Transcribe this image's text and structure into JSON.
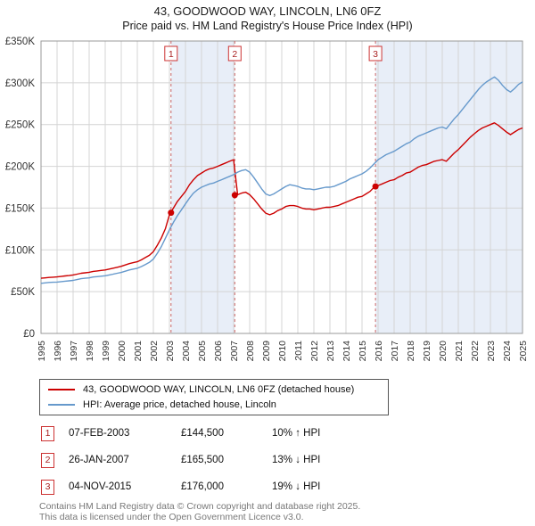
{
  "title": "43, GOODWOOD WAY, LINCOLN, LN6 0FZ",
  "subtitle": "Price paid vs. HM Land Registry's House Price Index (HPI)",
  "chart_data": {
    "type": "line",
    "x_range": [
      1995,
      2025
    ],
    "ylim": [
      0,
      350000
    ],
    "y_tick_step": 50000,
    "y_ticks": [
      "£0",
      "£50K",
      "£100K",
      "£150K",
      "£200K",
      "£250K",
      "£300K",
      "£350K"
    ],
    "x_ticks": [
      1995,
      1996,
      1997,
      1998,
      1999,
      2000,
      2001,
      2002,
      2003,
      2004,
      2005,
      2006,
      2007,
      2008,
      2009,
      2010,
      2011,
      2012,
      2013,
      2014,
      2015,
      2016,
      2017,
      2018,
      2019,
      2020,
      2021,
      2022,
      2023,
      2024,
      2025
    ],
    "grid": true,
    "legend_position": "bottom",
    "colors": {
      "band": "#e8eef8",
      "grid": "#d4d4d4",
      "border": "#999999",
      "sale_line": "#cc6666",
      "marker": "#cc0000",
      "sale_box_border": "#cc3333",
      "sale_box_text": "#aa2222"
    },
    "series": [
      {
        "name": "43, GOODWOOD WAY, LINCOLN, LN6 0FZ (detached house)",
        "color": "#cc0000",
        "x_start": 1995,
        "x_step": 0.25,
        "values": [
          66000,
          66500,
          67000,
          67300,
          67700,
          68200,
          68800,
          69300,
          70000,
          71000,
          72000,
          72600,
          73200,
          74300,
          74800,
          75400,
          76000,
          77000,
          78100,
          79200,
          80300,
          82000,
          83600,
          84700,
          85800,
          88000,
          90800,
          93500,
          98000,
          105600,
          114400,
          125400,
          142000,
          150000,
          158000,
          164000,
          170000,
          178000,
          184000,
          189000,
          192000,
          195000,
          197000,
          198000,
          200000,
          202000,
          204000,
          206000,
          208000,
          166000,
          168000,
          169000,
          166000,
          161000,
          155000,
          149000,
          144000,
          142000,
          144000,
          147000,
          149000,
          152000,
          153000,
          153000,
          152000,
          150000,
          149000,
          149000,
          148000,
          149000,
          150000,
          151000,
          151000,
          152000,
          153000,
          155000,
          157000,
          159000,
          161000,
          163000,
          164000,
          167000,
          170000,
          175000,
          177000,
          179000,
          181000,
          183000,
          184000,
          187000,
          189000,
          192000,
          193000,
          196000,
          199000,
          201000,
          202000,
          204000,
          206000,
          207000,
          208000,
          206000,
          211000,
          216000,
          220000,
          225000,
          230000,
          235000,
          239000,
          243000,
          246000,
          248000,
          250000,
          252000,
          249000,
          245000,
          241000,
          238000,
          241000,
          244000,
          246000
        ]
      },
      {
        "name": "HPI: Average price, detached house, Lincoln",
        "color": "#6699cc",
        "x_start": 1995,
        "x_step": 0.25,
        "values": [
          60000,
          60500,
          61000,
          61200,
          61500,
          62000,
          62500,
          63000,
          63500,
          64500,
          65500,
          66000,
          66500,
          67500,
          68000,
          68500,
          69000,
          70000,
          71000,
          72000,
          73000,
          74500,
          76000,
          77000,
          78000,
          80000,
          82500,
          85000,
          89000,
          96000,
          104000,
          114000,
          124000,
          133000,
          141000,
          148000,
          155000,
          162000,
          168000,
          172000,
          175000,
          177000,
          179000,
          180000,
          182000,
          184000,
          186000,
          188000,
          190000,
          193000,
          195000,
          196000,
          193000,
          187000,
          180000,
          173000,
          167000,
          165000,
          167000,
          170000,
          173000,
          176000,
          178000,
          177000,
          176000,
          174000,
          173000,
          173000,
          172000,
          173000,
          174000,
          175000,
          175000,
          176000,
          178000,
          180000,
          182000,
          185000,
          187000,
          189000,
          191000,
          194000,
          198000,
          203000,
          208000,
          211000,
          214000,
          216000,
          218000,
          221000,
          224000,
          227000,
          229000,
          233000,
          236000,
          238000,
          240000,
          242000,
          244000,
          246000,
          247000,
          245000,
          251000,
          257000,
          262000,
          268000,
          274000,
          280000,
          286000,
          292000,
          297000,
          301000,
          304000,
          307000,
          303000,
          297000,
          292000,
          289000,
          293000,
          298000,
          301000
        ]
      }
    ],
    "sales": [
      {
        "label": "1",
        "x": 2003.1,
        "y": 144500
      },
      {
        "label": "2",
        "x": 2007.07,
        "y": 165500
      },
      {
        "label": "3",
        "x": 2015.84,
        "y": 176000
      }
    ],
    "shaded_bands": [
      [
        2003.1,
        2007.07
      ],
      [
        2015.84,
        2025
      ]
    ]
  },
  "legend": {
    "items": [
      {
        "label": "43, GOODWOOD WAY, LINCOLN, LN6 0FZ (detached house)",
        "color": "#cc0000"
      },
      {
        "label": "HPI: Average price, detached house, Lincoln",
        "color": "#6699cc"
      }
    ]
  },
  "table": {
    "rows": [
      {
        "num": "1",
        "date": "07-FEB-2003",
        "price": "£144,500",
        "hpi": "10% ↑ HPI"
      },
      {
        "num": "2",
        "date": "26-JAN-2007",
        "price": "£165,500",
        "hpi": "13% ↓ HPI"
      },
      {
        "num": "3",
        "date": "04-NOV-2015",
        "price": "£176,000",
        "hpi": "19% ↓ HPI"
      }
    ]
  },
  "footer": {
    "line1": "Contains HM Land Registry data © Crown copyright and database right 2025.",
    "line2": "This data is licensed under the Open Government Licence v3.0."
  }
}
